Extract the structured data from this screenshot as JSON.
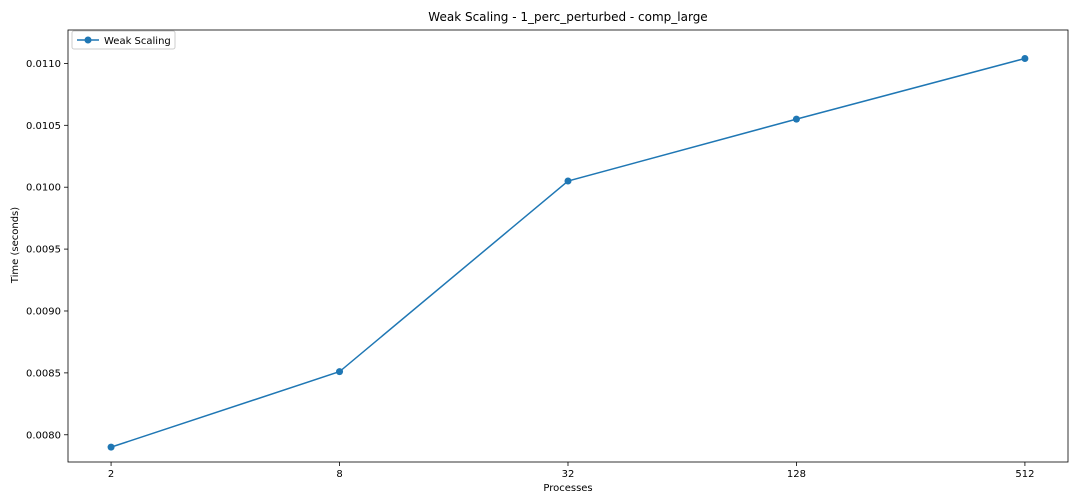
{
  "chart_data": {
    "type": "line",
    "title": "Weak Scaling - 1_perc_perturbed - comp_large",
    "xlabel": "Processes",
    "ylabel": "Time (seconds)",
    "x_scale": "log2",
    "categories": [
      "2",
      "8",
      "32",
      "128",
      "512"
    ],
    "x": [
      2,
      8,
      32,
      128,
      512
    ],
    "y_ticks": [
      "0.0080",
      "0.0085",
      "0.0090",
      "0.0095",
      "0.0100",
      "0.0105",
      "0.0110"
    ],
    "ylim": [
      0.00778,
      0.01127
    ],
    "series": [
      {
        "name": "Weak Scaling",
        "color": "#1f77b4",
        "marker": "circle",
        "values": [
          0.0079,
          0.00851,
          0.01005,
          0.01055,
          0.01104
        ]
      }
    ],
    "grid": false,
    "legend_position": "top-left"
  }
}
